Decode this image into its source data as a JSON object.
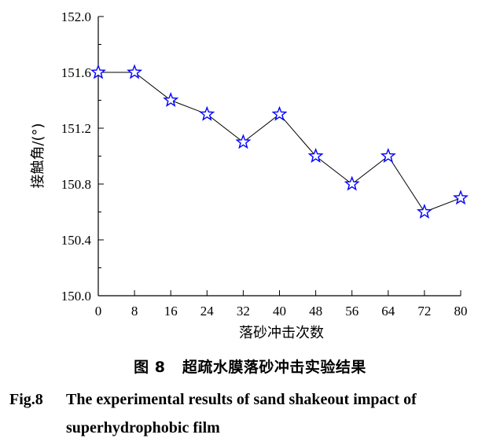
{
  "chart_data": {
    "type": "line",
    "xlabel": "落砂冲击次数",
    "ylabel": "接触角/(°)",
    "x": [
      0,
      8,
      16,
      24,
      32,
      40,
      48,
      56,
      64,
      72,
      80
    ],
    "y": [
      151.6,
      151.6,
      151.4,
      151.3,
      151.1,
      151.3,
      151.0,
      150.8,
      151.0,
      150.6,
      150.7
    ],
    "xlim": [
      0,
      80
    ],
    "ylim": [
      150.0,
      152.0
    ],
    "xticks": [
      "0",
      "8",
      "16",
      "24",
      "32",
      "40",
      "48",
      "56",
      "64",
      "72",
      "80"
    ],
    "yticks": [
      "150.0",
      "150.4",
      "150.8",
      "151.2",
      "151.6",
      "152.0"
    ],
    "marker": "star",
    "line_color": "#000000",
    "marker_color": "#0000ff"
  },
  "caption": {
    "cn_label": "图 8",
    "cn_text": "超疏水膜落砂冲击实验结果",
    "en_label": "Fig.8",
    "en_text_line1": "The experimental results of sand shakeout impact of",
    "en_text_line2": "superhydrophobic film"
  }
}
